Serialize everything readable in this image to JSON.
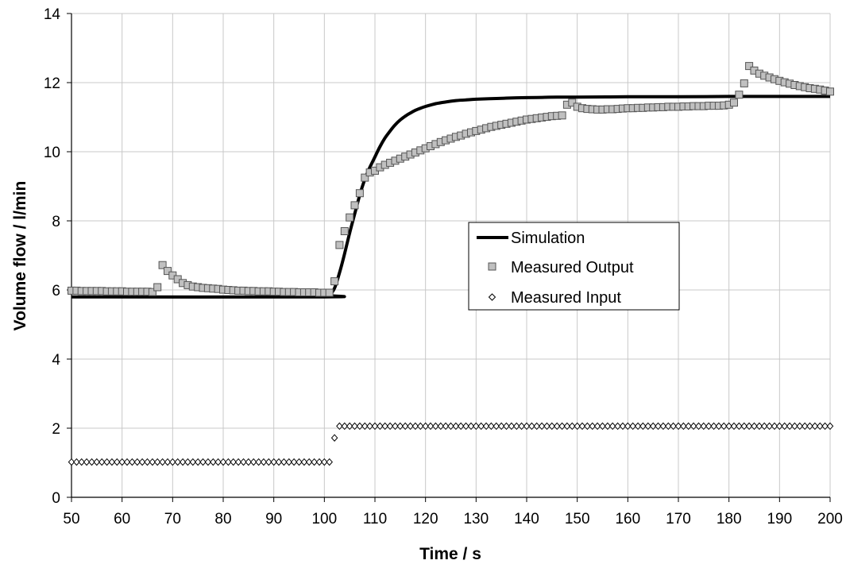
{
  "chart_data": {
    "type": "scatter",
    "title": "",
    "xlabel": "Time / s",
    "ylabel": "Volume flow / l/min",
    "xlim": [
      50,
      200
    ],
    "ylim": [
      0,
      14
    ],
    "xticks": [
      50,
      60,
      70,
      80,
      90,
      100,
      110,
      120,
      130,
      140,
      150,
      160,
      170,
      180,
      190,
      200
    ],
    "yticks": [
      0,
      2,
      4,
      6,
      8,
      10,
      12,
      14
    ],
    "grid": true,
    "legend_position": "center-right",
    "series": [
      {
        "name": "Simulation",
        "style": "line",
        "color": "#000000",
        "x": [
          50,
          100,
          101,
          102,
          103,
          104,
          105,
          106,
          107,
          108,
          109,
          110,
          111,
          112,
          113,
          114,
          115,
          116,
          117,
          118,
          119,
          120,
          122,
          124,
          126,
          128,
          130,
          134,
          138,
          142,
          146,
          150,
          160,
          170,
          180,
          190,
          200
        ],
        "y": [
          5.8,
          5.8,
          5.85,
          6.05,
          6.5,
          7.05,
          7.65,
          8.2,
          8.75,
          9.2,
          9.55,
          9.85,
          10.15,
          10.4,
          10.6,
          10.78,
          10.92,
          11.03,
          11.12,
          11.2,
          11.26,
          11.31,
          11.39,
          11.44,
          11.48,
          11.5,
          11.52,
          11.54,
          11.56,
          11.57,
          11.58,
          11.58,
          11.59,
          11.59,
          11.6,
          11.6,
          11.6
        ]
      },
      {
        "name": "Measured Output",
        "style": "square-markers",
        "color": "#c0c0c0",
        "x": [
          50,
          51,
          52,
          53,
          54,
          55,
          56,
          57,
          58,
          59,
          60,
          61,
          62,
          63,
          64,
          65,
          66,
          67,
          68,
          69,
          70,
          71,
          72,
          73,
          74,
          75,
          76,
          77,
          78,
          79,
          80,
          81,
          82,
          83,
          84,
          85,
          86,
          87,
          88,
          89,
          90,
          91,
          92,
          93,
          94,
          95,
          96,
          97,
          98,
          99,
          100,
          101,
          102,
          103,
          104,
          105,
          106,
          107,
          108,
          109,
          110,
          111,
          112,
          113,
          114,
          115,
          116,
          117,
          118,
          119,
          120,
          121,
          122,
          123,
          124,
          125,
          126,
          127,
          128,
          129,
          130,
          131,
          132,
          133,
          134,
          135,
          136,
          137,
          138,
          139,
          140,
          141,
          142,
          143,
          144,
          145,
          146,
          147,
          148,
          149,
          150,
          151,
          152,
          153,
          154,
          155,
          156,
          157,
          158,
          159,
          160,
          161,
          162,
          163,
          164,
          165,
          166,
          167,
          168,
          169,
          170,
          171,
          172,
          173,
          174,
          175,
          176,
          177,
          178,
          179,
          180,
          181,
          182,
          183,
          184,
          185,
          186,
          187,
          188,
          189,
          190,
          191,
          192,
          193,
          194,
          195,
          196,
          197,
          198,
          199,
          200
        ],
        "y": [
          5.98,
          5.98,
          5.97,
          5.97,
          5.97,
          5.97,
          5.97,
          5.96,
          5.96,
          5.96,
          5.96,
          5.95,
          5.95,
          5.95,
          5.95,
          5.95,
          5.94,
          6.08,
          6.72,
          6.55,
          6.42,
          6.31,
          6.2,
          6.14,
          6.1,
          6.08,
          6.06,
          6.05,
          6.04,
          6.03,
          6.01,
          6.0,
          5.99,
          5.98,
          5.98,
          5.97,
          5.97,
          5.96,
          5.96,
          5.96,
          5.95,
          5.95,
          5.94,
          5.94,
          5.94,
          5.93,
          5.93,
          5.93,
          5.93,
          5.92,
          5.92,
          5.92,
          6.25,
          7.3,
          7.7,
          8.1,
          8.45,
          8.8,
          9.25,
          9.4,
          9.45,
          9.55,
          9.62,
          9.68,
          9.74,
          9.8,
          9.86,
          9.92,
          9.98,
          10.04,
          10.1,
          10.16,
          10.22,
          10.28,
          10.33,
          10.38,
          10.43,
          10.47,
          10.52,
          10.56,
          10.6,
          10.64,
          10.68,
          10.72,
          10.75,
          10.78,
          10.81,
          10.84,
          10.87,
          10.9,
          10.93,
          10.95,
          10.97,
          10.99,
          11.01,
          11.03,
          11.04,
          11.05,
          11.36,
          11.42,
          11.3,
          11.26,
          11.24,
          11.23,
          11.22,
          11.22,
          11.23,
          11.23,
          11.24,
          11.25,
          11.26,
          11.26,
          11.27,
          11.27,
          11.28,
          11.28,
          11.29,
          11.29,
          11.3,
          11.3,
          11.3,
          11.31,
          11.31,
          11.32,
          11.32,
          11.32,
          11.33,
          11.33,
          11.33,
          11.34,
          11.36,
          11.42,
          11.65,
          11.98,
          12.48,
          12.35,
          12.26,
          12.2,
          12.15,
          12.1,
          12.05,
          12.01,
          11.97,
          11.93,
          11.9,
          11.87,
          11.84,
          11.82,
          11.8,
          11.77,
          11.74
        ]
      },
      {
        "name": "Measured Input",
        "style": "diamond-markers",
        "color": "#ffffff",
        "x_start": 50,
        "x_step": 1,
        "y": [
          1.02,
          1.02,
          1.02,
          1.02,
          1.02,
          1.02,
          1.02,
          1.02,
          1.02,
          1.02,
          1.02,
          1.02,
          1.02,
          1.02,
          1.02,
          1.02,
          1.02,
          1.02,
          1.02,
          1.02,
          1.02,
          1.02,
          1.02,
          1.02,
          1.02,
          1.02,
          1.02,
          1.02,
          1.02,
          1.02,
          1.02,
          1.02,
          1.02,
          1.02,
          1.02,
          1.02,
          1.02,
          1.02,
          1.02,
          1.02,
          1.02,
          1.02,
          1.02,
          1.02,
          1.02,
          1.02,
          1.02,
          1.02,
          1.02,
          1.02,
          1.02,
          1.02,
          1.72,
          2.06,
          2.06,
          2.06,
          2.06,
          2.06,
          2.06,
          2.06,
          2.06,
          2.06,
          2.06,
          2.06,
          2.06,
          2.06,
          2.06,
          2.06,
          2.06,
          2.06,
          2.06,
          2.06,
          2.06,
          2.06,
          2.06,
          2.06,
          2.06,
          2.06,
          2.06,
          2.06,
          2.06,
          2.06,
          2.06,
          2.06,
          2.06,
          2.06,
          2.06,
          2.06,
          2.06,
          2.06,
          2.06,
          2.06,
          2.06,
          2.06,
          2.06,
          2.06,
          2.06,
          2.06,
          2.06,
          2.06,
          2.06,
          2.06,
          2.06,
          2.06,
          2.06,
          2.06,
          2.06,
          2.06,
          2.06,
          2.06,
          2.06,
          2.06,
          2.06,
          2.06,
          2.06,
          2.06,
          2.06,
          2.06,
          2.06,
          2.06,
          2.06,
          2.06,
          2.06,
          2.06,
          2.06,
          2.06,
          2.06,
          2.06,
          2.06,
          2.06,
          2.06,
          2.06,
          2.06,
          2.06,
          2.06,
          2.06,
          2.06,
          2.06,
          2.06,
          2.06,
          2.06,
          2.06,
          2.06,
          2.06,
          2.06,
          2.06,
          2.06,
          2.06,
          2.06,
          2.06,
          2.06
        ]
      }
    ]
  }
}
